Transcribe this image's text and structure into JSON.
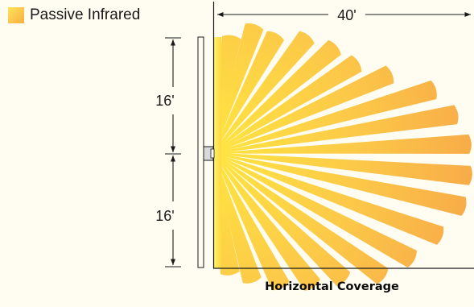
{
  "legend": {
    "label": "Passive Infrared",
    "icon": "square-swatch-icon",
    "swatch_colors": [
      "#ffe45a",
      "#f8ad40"
    ]
  },
  "dimensions": {
    "width_label": "40'",
    "upper_height_label": "16'",
    "lower_height_label": "16'"
  },
  "caption": "Horizontal Coverage",
  "colors": {
    "beam_near": "#ffe640",
    "beam_far": "#f8ab48",
    "line": "#1a1a1a",
    "background": "#fffdf2"
  }
}
